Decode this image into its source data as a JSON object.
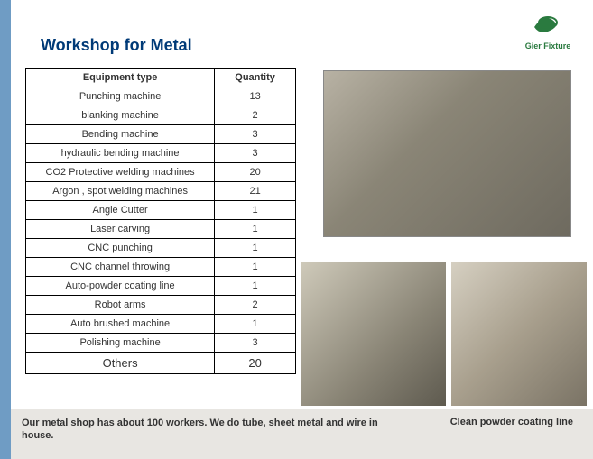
{
  "brand": {
    "name": "Gier Fixture",
    "logo_color": "#2a7a3f"
  },
  "title": "Workshop for Metal",
  "table": {
    "header_equipment": "Equipment type",
    "header_quantity": "Quantity",
    "rows": [
      {
        "name": "Punching machine",
        "qty": "13"
      },
      {
        "name": "blanking machine",
        "qty": "2"
      },
      {
        "name": "Bending machine",
        "qty": "3"
      },
      {
        "name": "hydraulic bending machine",
        "qty": "3"
      },
      {
        "name": "CO2 Protective welding machines",
        "qty": "20"
      },
      {
        "name": "Argon , spot welding machines",
        "qty": "21"
      },
      {
        "name": "Angle Cutter",
        "qty": "1"
      },
      {
        "name": "Laser carving",
        "qty": "1"
      },
      {
        "name": "CNC punching",
        "qty": "1"
      },
      {
        "name": "CNC channel throwing",
        "qty": "1"
      },
      {
        "name": "Auto-powder coating line",
        "qty": "1"
      },
      {
        "name": "Robot arms",
        "qty": "2"
      },
      {
        "name": "Auto brushed machine",
        "qty": "1"
      },
      {
        "name": "Polishing machine",
        "qty": "3"
      }
    ],
    "last_row": {
      "name": "Others",
      "qty": "20"
    }
  },
  "footnote": "Our metal shop has about 100 workers. We do tube, sheet metal and wire in house.",
  "photo_caption": "Clean powder coating line",
  "colors": {
    "left_accent": "#6f9cc4",
    "bottom_accent": "#e8e6e2",
    "title_color": "#003a77"
  }
}
